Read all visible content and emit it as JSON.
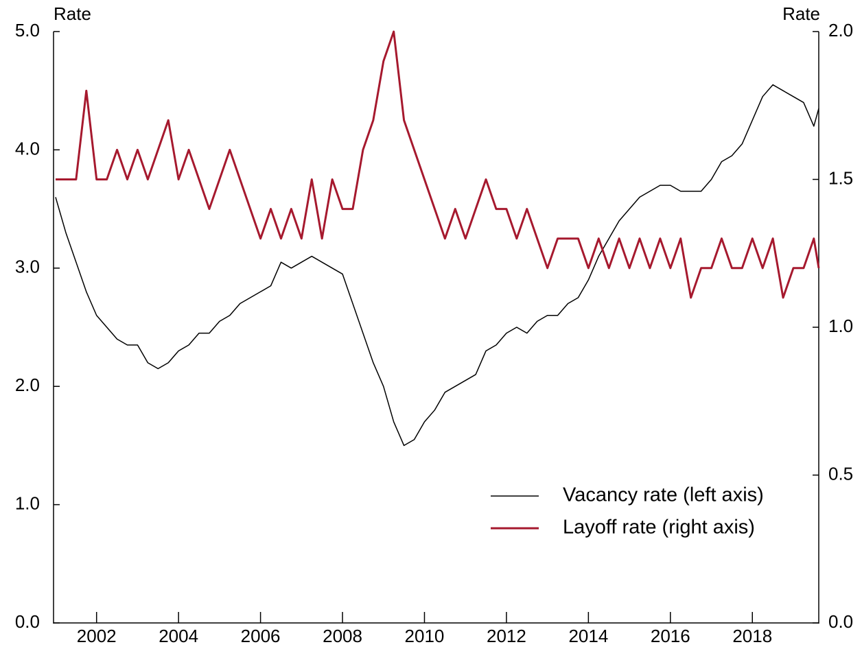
{
  "chart_data": {
    "type": "line",
    "y_label": "Rate",
    "y2_label": "Rate",
    "x": [
      2001.0,
      2001.25,
      2001.5,
      2001.75,
      2002.0,
      2002.25,
      2002.5,
      2002.75,
      2003.0,
      2003.25,
      2003.5,
      2003.75,
      2004.0,
      2004.25,
      2004.5,
      2004.75,
      2005.0,
      2005.25,
      2005.5,
      2005.75,
      2006.0,
      2006.25,
      2006.5,
      2006.75,
      2007.0,
      2007.25,
      2007.5,
      2007.75,
      2008.0,
      2008.25,
      2008.5,
      2008.75,
      2009.0,
      2009.25,
      2009.5,
      2009.75,
      2010.0,
      2010.25,
      2010.5,
      2010.75,
      2011.0,
      2011.25,
      2011.5,
      2011.75,
      2012.0,
      2012.25,
      2012.5,
      2012.75,
      2013.0,
      2013.25,
      2013.5,
      2013.75,
      2014.0,
      2014.25,
      2014.5,
      2014.75,
      2015.0,
      2015.25,
      2015.5,
      2015.75,
      2016.0,
      2016.25,
      2016.5,
      2016.75,
      2017.0,
      2017.25,
      2017.5,
      2017.75,
      2018.0,
      2018.25,
      2018.5,
      2018.75,
      2019.0,
      2019.25,
      2019.5,
      2019.62
    ],
    "series": [
      {
        "name": "Vacancy rate (left axis)",
        "color": "#000000",
        "axis": "y",
        "values": [
          3.6,
          3.3,
          3.05,
          2.8,
          2.6,
          2.5,
          2.4,
          2.35,
          2.35,
          2.2,
          2.15,
          2.2,
          2.3,
          2.35,
          2.45,
          2.45,
          2.55,
          2.6,
          2.7,
          2.75,
          2.8,
          2.85,
          3.05,
          3.0,
          3.05,
          3.1,
          3.05,
          3.0,
          2.95,
          2.7,
          2.45,
          2.2,
          2.0,
          1.7,
          1.5,
          1.55,
          1.7,
          1.8,
          1.95,
          2.0,
          2.05,
          2.1,
          2.3,
          2.35,
          2.45,
          2.5,
          2.45,
          2.55,
          2.6,
          2.6,
          2.7,
          2.75,
          2.9,
          3.1,
          3.25,
          3.4,
          3.5,
          3.6,
          3.65,
          3.7,
          3.7,
          3.65,
          3.65,
          3.65,
          3.75,
          3.9,
          3.95,
          4.05,
          4.25,
          4.45,
          4.55,
          4.5,
          4.45,
          4.4,
          4.2,
          4.35
        ]
      },
      {
        "name": "Layoff rate (right axis)",
        "color": "#a6192e",
        "axis": "y2",
        "values": [
          1.5,
          1.5,
          1.5,
          1.8,
          1.5,
          1.5,
          1.6,
          1.5,
          1.6,
          1.5,
          1.6,
          1.7,
          1.5,
          1.6,
          1.5,
          1.4,
          1.5,
          1.6,
          1.5,
          1.4,
          1.3,
          1.4,
          1.3,
          1.4,
          1.3,
          1.5,
          1.3,
          1.5,
          1.4,
          1.4,
          1.6,
          1.7,
          1.9,
          2.0,
          1.7,
          1.6,
          1.5,
          1.4,
          1.3,
          1.4,
          1.3,
          1.4,
          1.5,
          1.4,
          1.4,
          1.3,
          1.4,
          1.3,
          1.2,
          1.3,
          1.3,
          1.3,
          1.2,
          1.3,
          1.2,
          1.3,
          1.2,
          1.3,
          1.2,
          1.3,
          1.2,
          1.3,
          1.1,
          1.2,
          1.2,
          1.3,
          1.2,
          1.2,
          1.3,
          1.2,
          1.3,
          1.1,
          1.2,
          1.2,
          1.3,
          1.2
        ]
      }
    ],
    "xlim": [
      2000.95,
      2019.62
    ],
    "xticks": [
      2002,
      2004,
      2006,
      2008,
      2010,
      2012,
      2014,
      2016,
      2018
    ],
    "ylim": [
      0,
      5
    ],
    "yticks": [
      {
        "value": 0,
        "label": "0.0"
      },
      {
        "value": 1,
        "label": "1.0"
      },
      {
        "value": 2,
        "label": "2.0"
      },
      {
        "value": 3,
        "label": "3.0"
      },
      {
        "value": 4,
        "label": "4.0"
      },
      {
        "value": 5,
        "label": "5.0"
      }
    ],
    "y2lim": [
      0,
      2
    ],
    "y2ticks": [
      {
        "value": 0,
        "label": "0.0"
      },
      {
        "value": 0.5,
        "label": "0.5"
      },
      {
        "value": 1,
        "label": "1.0"
      },
      {
        "value": 1.5,
        "label": "1.5"
      },
      {
        "value": 2,
        "label": "2.0"
      }
    ],
    "grid": false,
    "legend": "lower right"
  }
}
